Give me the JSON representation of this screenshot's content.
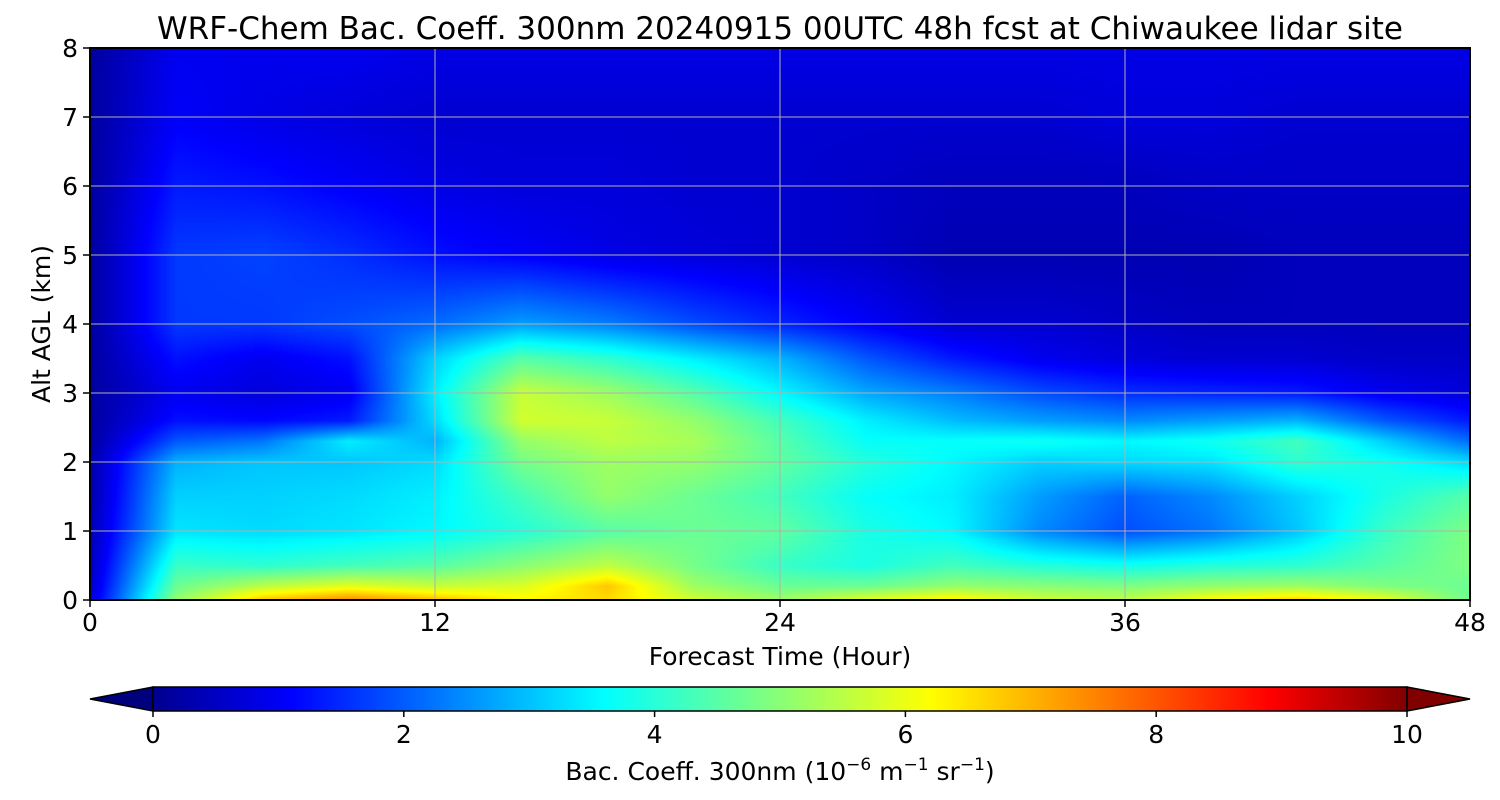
{
  "chart_data": {
    "type": "heatmap",
    "title": "WRF-Chem Bac. Coeff. 300nm  20240915 00UTC 48h fcst at Chiwaukee lidar site",
    "xlabel": "Forecast Time (Hour)",
    "ylabel": "Alt AGL (km)",
    "xlim": [
      0,
      48
    ],
    "ylim": [
      0,
      8
    ],
    "x_ticks": [
      0,
      12,
      24,
      36,
      48
    ],
    "y_ticks": [
      0,
      1,
      2,
      3,
      4,
      5,
      6,
      7,
      8
    ],
    "grid": true,
    "colormap": "jet",
    "colorbar": {
      "orientation": "horizontal",
      "position": "bottom",
      "range": [
        0,
        10
      ],
      "ticks": [
        0,
        2,
        4,
        6,
        8,
        10
      ],
      "extend": "both",
      "label_main": "Bac. Coeff. 300nm  (10",
      "label_exp1": "−6",
      "label_mid": " m",
      "label_exp2": "−1",
      "label_sr": " sr",
      "label_exp3": "−1",
      "label_end": ")"
    },
    "hours": [
      0,
      3,
      6,
      9,
      12,
      15,
      18,
      21,
      24,
      27,
      30,
      33,
      36,
      39,
      42,
      45,
      48
    ],
    "altitudes_km": [
      0,
      0.2,
      0.5,
      1,
      1.5,
      2,
      2.3,
      2.6,
      3,
      3.5,
      4,
      5,
      6,
      7,
      8
    ],
    "values": [
      [
        0.8,
        5.2,
        6.8,
        7.4,
        6.9,
        6.3,
        6.6,
        5.8,
        5.3,
        6.0,
        6.4,
        5.8,
        5.6,
        6.3,
        6.7,
        6.1,
        4.8
      ],
      [
        0.7,
        4.8,
        5.6,
        6.0,
        5.7,
        5.9,
        6.8,
        5.3,
        4.8,
        4.8,
        5.2,
        5.1,
        5.0,
        5.2,
        5.3,
        5.0,
        4.8
      ],
      [
        0.6,
        4.3,
        4.2,
        4.4,
        4.6,
        5.1,
        5.6,
        4.9,
        4.3,
        4.0,
        4.4,
        4.1,
        3.9,
        4.1,
        4.2,
        4.6,
        5.0
      ],
      [
        0.5,
        3.5,
        3.4,
        3.5,
        3.7,
        4.1,
        4.6,
        4.8,
        4.7,
        4.0,
        3.7,
        2.6,
        2.0,
        2.4,
        3.2,
        4.3,
        5.0
      ],
      [
        0.4,
        3.3,
        3.3,
        3.4,
        3.6,
        4.4,
        5.2,
        4.8,
        4.4,
        3.8,
        3.6,
        2.8,
        2.2,
        2.6,
        3.3,
        4.0,
        4.6
      ],
      [
        0.4,
        3.0,
        3.2,
        3.2,
        3.4,
        4.9,
        5.3,
        5.2,
        4.7,
        4.1,
        3.7,
        3.3,
        3.4,
        3.5,
        4.2,
        3.9,
        3.4
      ],
      [
        0.3,
        2.1,
        2.4,
        3.6,
        3.0,
        5.2,
        5.6,
        5.4,
        4.6,
        3.8,
        3.8,
        3.9,
        3.7,
        3.9,
        4.4,
        3.3,
        2.3
      ],
      [
        0.3,
        1.4,
        1.3,
        1.5,
        3.4,
        5.8,
        5.7,
        5.2,
        4.4,
        3.6,
        3.1,
        2.8,
        2.6,
        2.8,
        3.0,
        2.1,
        1.5
      ],
      [
        0.3,
        1.1,
        0.9,
        1.1,
        3.6,
        5.7,
        5.3,
        4.6,
        3.7,
        2.9,
        2.5,
        2.0,
        1.7,
        1.6,
        1.5,
        1.1,
        0.9
      ],
      [
        0.3,
        1.4,
        1.1,
        1.4,
        3.3,
        4.6,
        4.2,
        3.6,
        3.0,
        2.1,
        1.5,
        1.1,
        0.9,
        0.8,
        0.8,
        0.7,
        0.7
      ],
      [
        0.3,
        1.8,
        1.8,
        2.0,
        2.3,
        2.8,
        2.5,
        2.0,
        1.6,
        1.2,
        0.8,
        0.8,
        0.7,
        0.6,
        0.6,
        0.6,
        0.6
      ],
      [
        0.3,
        1.8,
        1.9,
        1.7,
        1.4,
        1.2,
        1.0,
        0.9,
        0.8,
        0.7,
        0.5,
        0.5,
        0.5,
        0.5,
        0.6,
        0.6,
        0.6
      ],
      [
        0.3,
        1.5,
        1.4,
        1.2,
        1.0,
        0.9,
        0.9,
        0.8,
        0.8,
        0.7,
        0.6,
        0.6,
        0.6,
        0.7,
        0.7,
        0.7,
        0.7
      ],
      [
        0.3,
        1.2,
        1.0,
        0.9,
        0.8,
        0.8,
        0.8,
        0.8,
        0.8,
        0.8,
        0.8,
        0.8,
        0.9,
        0.9,
        0.8,
        0.8,
        0.8
      ],
      [
        0.3,
        1.1,
        1.1,
        1.1,
        1.0,
        1.0,
        1.0,
        1.0,
        1.0,
        1.0,
        1.0,
        1.0,
        1.0,
        1.0,
        1.0,
        1.0,
        1.0
      ]
    ]
  }
}
